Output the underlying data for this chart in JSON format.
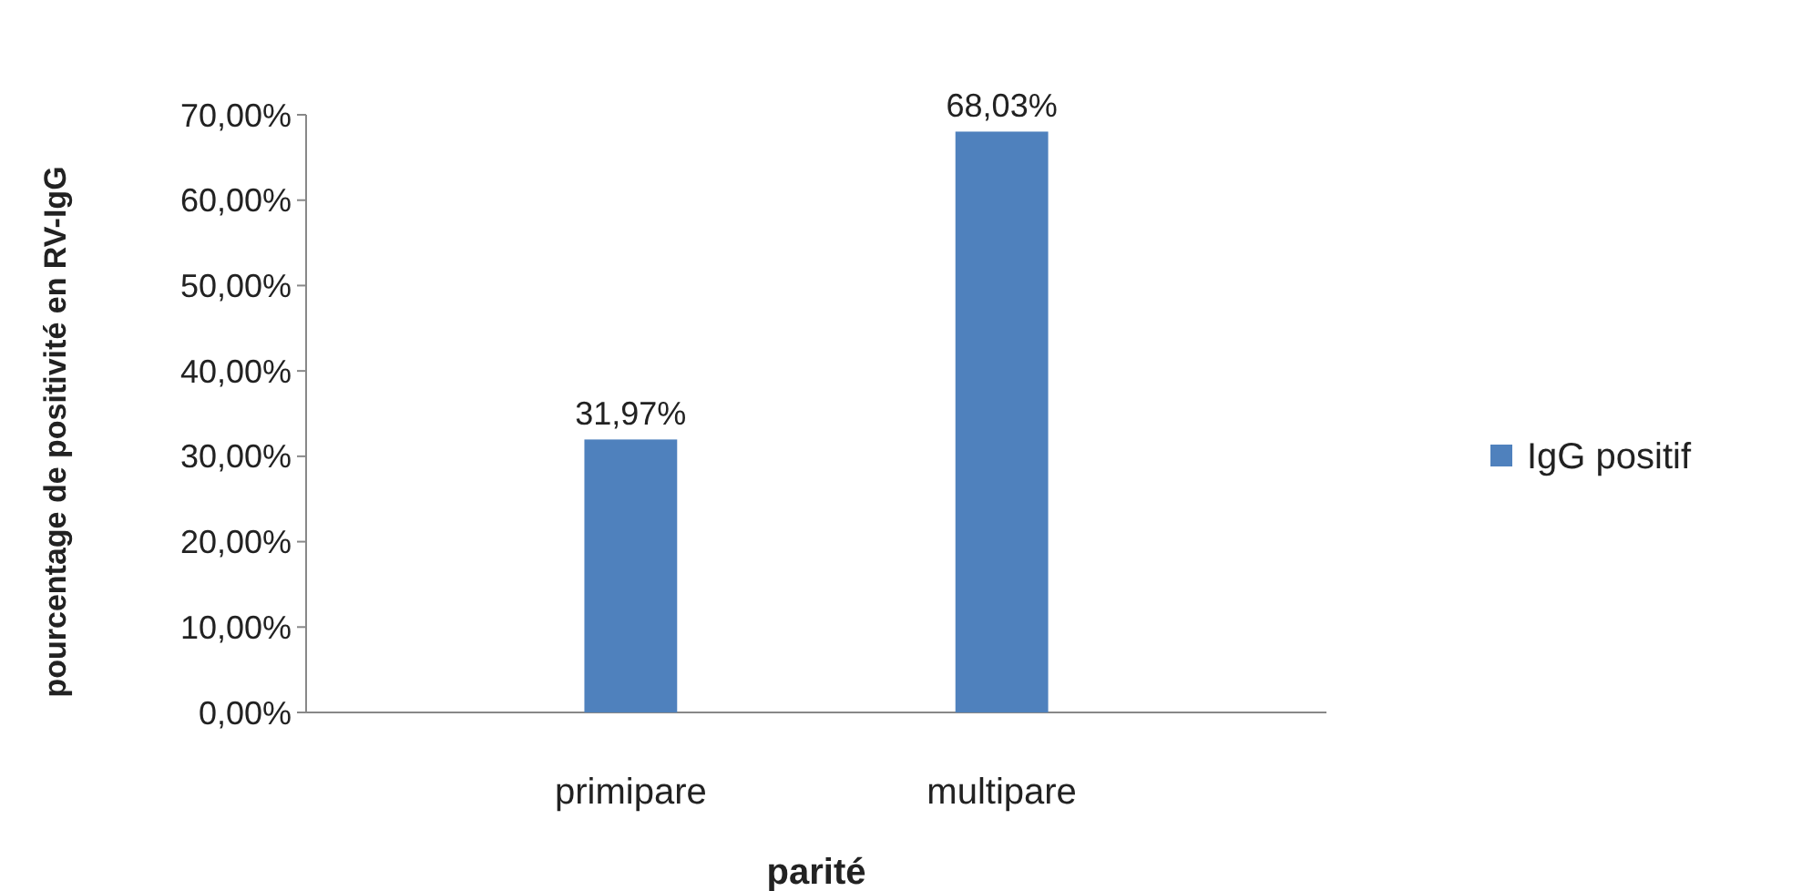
{
  "chart_data": {
    "type": "bar",
    "xlabel": "parité",
    "ylabel": "pourcentage de positivité en RV-IgG",
    "categories": [
      "primipare",
      "multipare"
    ],
    "series": [
      {
        "name": "IgG positif",
        "color": "#4f81bd",
        "values": [
          31.97,
          68.03
        ],
        "value_labels": [
          "31,97%",
          "68,03%"
        ]
      }
    ],
    "ylim": [
      0,
      70
    ],
    "yticks": [
      {
        "value": 0,
        "label": "0,00%"
      },
      {
        "value": 10,
        "label": "10,00%"
      },
      {
        "value": 20,
        "label": "20,00%"
      },
      {
        "value": 30,
        "label": "30,00%"
      },
      {
        "value": 40,
        "label": "40,00%"
      },
      {
        "value": 50,
        "label": "50,00%"
      },
      {
        "value": 60,
        "label": "60,00%"
      },
      {
        "value": 70,
        "label": "70,00%"
      }
    ],
    "legend": "right"
  }
}
